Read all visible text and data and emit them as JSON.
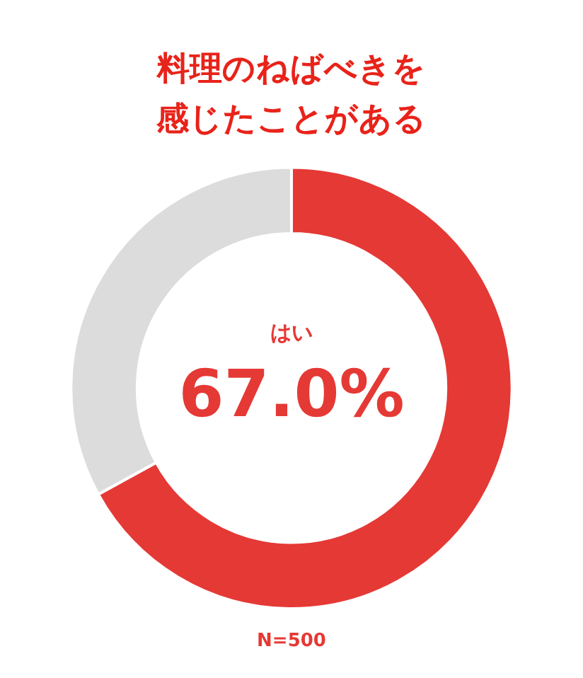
{
  "chart_data": {
    "type": "donut",
    "title": "料理のねばべきを感じたことがある",
    "categories": [
      "はい",
      null
    ],
    "values": [
      67.0,
      33.0
    ],
    "colors": [
      "#e53935",
      "#dcdcdc"
    ],
    "value_labels": [
      "67.0%",
      null
    ],
    "annotations": [
      "N=500"
    ],
    "legend": false
  }
}
